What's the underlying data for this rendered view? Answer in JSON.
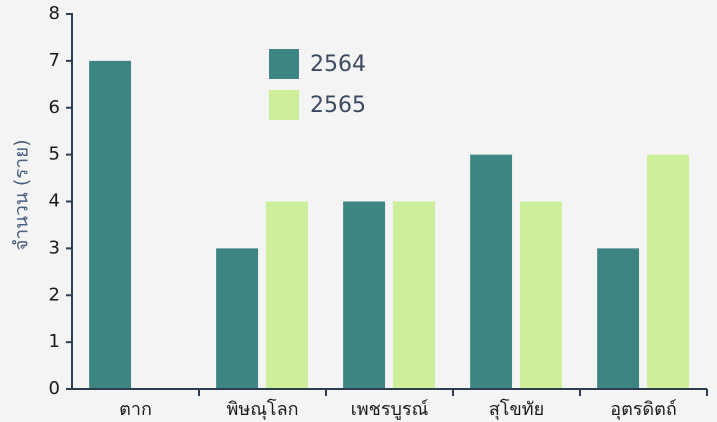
{
  "chart_data": {
    "type": "bar",
    "ylabel": "จำนวน (ราย)",
    "categories": [
      "ตาก",
      "พิษณุโลก",
      "เพชรบูรณ์",
      "สุโขทัย",
      "อุตรดิตถ์"
    ],
    "series": [
      {
        "name": "2564",
        "color": "#3d8583",
        "values": [
          7,
          3,
          4,
          5,
          3
        ]
      },
      {
        "name": "2565",
        "color": "#cdee9a",
        "values": [
          0,
          4,
          4,
          4,
          5
        ]
      }
    ],
    "ylim": [
      0,
      8
    ],
    "yticks": [
      0,
      1,
      2,
      3,
      4,
      5,
      6,
      7,
      8
    ]
  }
}
